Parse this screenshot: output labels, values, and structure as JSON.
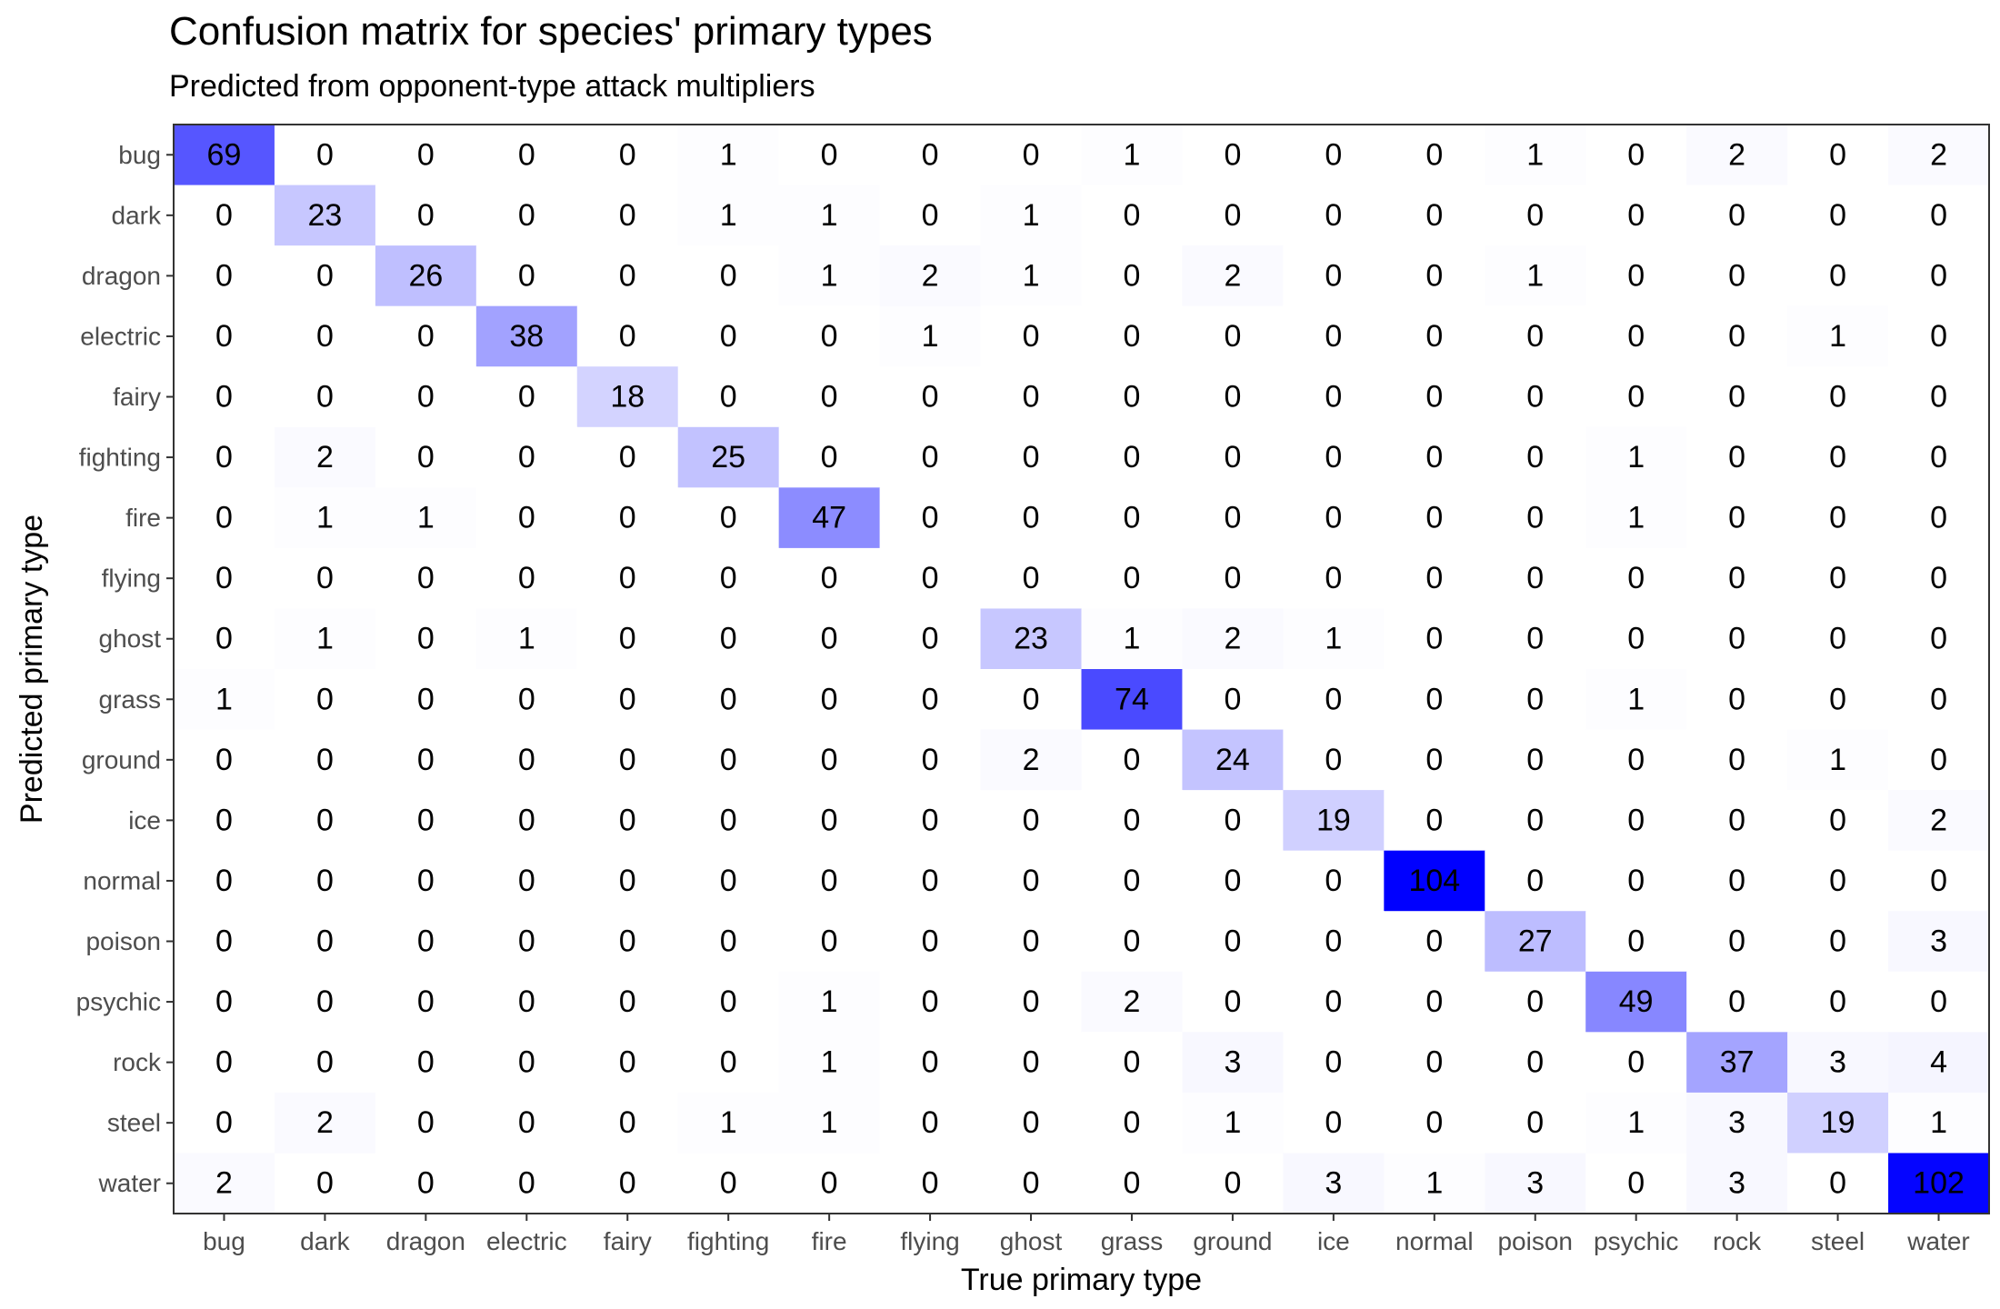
{
  "chart_data": {
    "type": "heatmap",
    "title": "Confusion matrix for species' primary types",
    "subtitle": "Predicted from opponent-type attack multipliers",
    "xlabel": "True primary type",
    "ylabel": "Predicted primary type",
    "x_categories": [
      "bug",
      "dark",
      "dragon",
      "electric",
      "fairy",
      "fighting",
      "fire",
      "flying",
      "ghost",
      "grass",
      "ground",
      "ice",
      "normal",
      "poison",
      "psychic",
      "rock",
      "steel",
      "water"
    ],
    "y_categories": [
      "bug",
      "dark",
      "dragon",
      "electric",
      "fairy",
      "fighting",
      "fire",
      "flying",
      "ghost",
      "grass",
      "ground",
      "ice",
      "normal",
      "poison",
      "psychic",
      "rock",
      "steel",
      "water"
    ],
    "values": [
      [
        69,
        0,
        0,
        0,
        0,
        1,
        0,
        0,
        0,
        1,
        0,
        0,
        0,
        1,
        0,
        2,
        0,
        2
      ],
      [
        0,
        23,
        0,
        0,
        0,
        1,
        1,
        0,
        1,
        0,
        0,
        0,
        0,
        0,
        0,
        0,
        0,
        0
      ],
      [
        0,
        0,
        26,
        0,
        0,
        0,
        1,
        2,
        1,
        0,
        2,
        0,
        0,
        1,
        0,
        0,
        0,
        0
      ],
      [
        0,
        0,
        0,
        38,
        0,
        0,
        0,
        1,
        0,
        0,
        0,
        0,
        0,
        0,
        0,
        0,
        1,
        0
      ],
      [
        0,
        0,
        0,
        0,
        18,
        0,
        0,
        0,
        0,
        0,
        0,
        0,
        0,
        0,
        0,
        0,
        0,
        0
      ],
      [
        0,
        2,
        0,
        0,
        0,
        25,
        0,
        0,
        0,
        0,
        0,
        0,
        0,
        0,
        1,
        0,
        0,
        0
      ],
      [
        0,
        1,
        1,
        0,
        0,
        0,
        47,
        0,
        0,
        0,
        0,
        0,
        0,
        0,
        1,
        0,
        0,
        0
      ],
      [
        0,
        0,
        0,
        0,
        0,
        0,
        0,
        0,
        0,
        0,
        0,
        0,
        0,
        0,
        0,
        0,
        0,
        0
      ],
      [
        0,
        1,
        0,
        1,
        0,
        0,
        0,
        0,
        23,
        1,
        2,
        1,
        0,
        0,
        0,
        0,
        0,
        0
      ],
      [
        1,
        0,
        0,
        0,
        0,
        0,
        0,
        0,
        0,
        74,
        0,
        0,
        0,
        0,
        1,
        0,
        0,
        0
      ],
      [
        0,
        0,
        0,
        0,
        0,
        0,
        0,
        0,
        2,
        0,
        24,
        0,
        0,
        0,
        0,
        0,
        1,
        0
      ],
      [
        0,
        0,
        0,
        0,
        0,
        0,
        0,
        0,
        0,
        0,
        0,
        19,
        0,
        0,
        0,
        0,
        0,
        2
      ],
      [
        0,
        0,
        0,
        0,
        0,
        0,
        0,
        0,
        0,
        0,
        0,
        0,
        104,
        0,
        0,
        0,
        0,
        0
      ],
      [
        0,
        0,
        0,
        0,
        0,
        0,
        0,
        0,
        0,
        0,
        0,
        0,
        0,
        27,
        0,
        0,
        0,
        3
      ],
      [
        0,
        0,
        0,
        0,
        0,
        0,
        1,
        0,
        0,
        2,
        0,
        0,
        0,
        0,
        49,
        0,
        0,
        0
      ],
      [
        0,
        0,
        0,
        0,
        0,
        0,
        1,
        0,
        0,
        0,
        3,
        0,
        0,
        0,
        0,
        37,
        3,
        4
      ],
      [
        0,
        2,
        0,
        0,
        0,
        1,
        1,
        0,
        0,
        0,
        1,
        0,
        0,
        0,
        1,
        3,
        19,
        1
      ],
      [
        2,
        0,
        0,
        0,
        0,
        0,
        0,
        0,
        0,
        0,
        0,
        3,
        1,
        3,
        0,
        3,
        0,
        102
      ]
    ],
    "color_low": "#ffffff",
    "color_high": "#0000ff",
    "value_range": [
      0,
      104
    ],
    "grid": false,
    "legend": "none"
  }
}
